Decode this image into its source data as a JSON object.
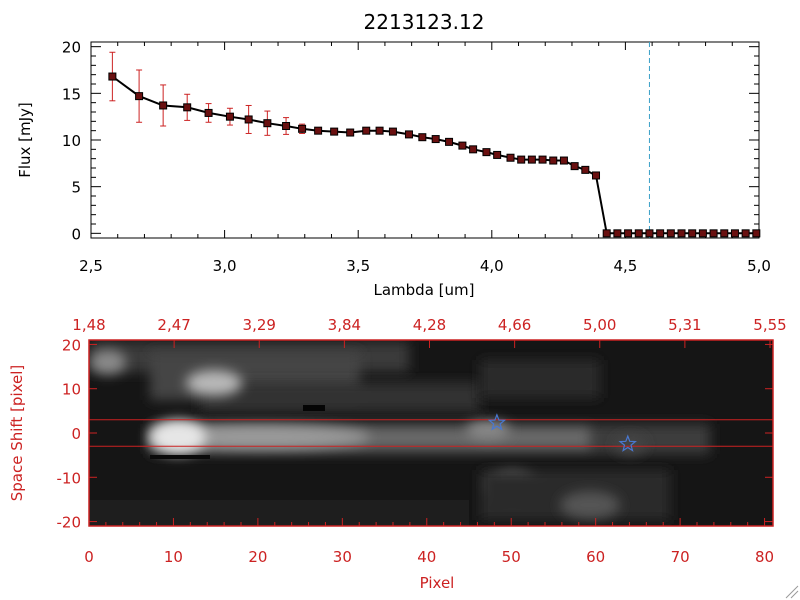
{
  "chart_data": [
    {
      "type": "line",
      "title": "2213123.12",
      "xlabel": "Lambda [um]",
      "ylabel": "Flux [mJy]",
      "xlim": [
        2.5,
        5.0
      ],
      "ylim": [
        -0.5,
        20.5
      ],
      "xticks": [
        "2.5",
        "3.0",
        "3.5",
        "4.0",
        "4.5",
        "5.0"
      ],
      "yticks": [
        "0",
        "5",
        "10",
        "15",
        "20"
      ],
      "marker_vline_x": 4.59,
      "series": [
        {
          "x": [
            2.58,
            2.68,
            2.77,
            2.86,
            2.94,
            3.02,
            3.09,
            3.16,
            3.23,
            3.29,
            3.35,
            3.41,
            3.47,
            3.53,
            3.58,
            3.63,
            3.69,
            3.74,
            3.79,
            3.84,
            3.89,
            3.93,
            3.98,
            4.02,
            4.07,
            4.11,
            4.15,
            4.19,
            4.23,
            4.27,
            4.31,
            4.35,
            4.39,
            4.43,
            4.47,
            4.51,
            4.55,
            4.59,
            4.63,
            4.67,
            4.71,
            4.75,
            4.79,
            4.83,
            4.87,
            4.91,
            4.95,
            4.99
          ],
          "y": [
            16.8,
            14.7,
            13.7,
            13.5,
            12.9,
            12.5,
            12.2,
            11.8,
            11.5,
            11.2,
            11.0,
            10.9,
            10.8,
            11.0,
            11.0,
            10.9,
            10.6,
            10.3,
            10.1,
            9.8,
            9.4,
            9.0,
            8.7,
            8.4,
            8.1,
            7.9,
            7.9,
            7.9,
            7.8,
            7.8,
            7.2,
            6.8,
            6.2,
            0.0,
            0.0,
            0.0,
            0.0,
            0.0,
            0.0,
            0.0,
            0.0,
            0.0,
            0.0,
            0.0,
            0.0,
            0.0,
            0.0,
            0.0
          ],
          "yerr": [
            2.6,
            2.8,
            2.2,
            1.4,
            1.0,
            0.9,
            1.5,
            1.3,
            0.9,
            0.5,
            0.3,
            0.3,
            0.3,
            0.3,
            0.3,
            0.3,
            0.3,
            0.3,
            0.3,
            0.3,
            0.3,
            0.3,
            0.3,
            0.3,
            0.3,
            0.3,
            0.3,
            0.3,
            0.3,
            0.3,
            0.3,
            0.3,
            0.3,
            0,
            0,
            0,
            0,
            0,
            0,
            0,
            0,
            0,
            0,
            0,
            0,
            0,
            0,
            0
          ]
        }
      ]
    },
    {
      "type": "heatmap",
      "xlabel": "Pixel",
      "ylabel": "Space Shift [pixel]",
      "xlim": [
        0,
        81
      ],
      "ylim": [
        -21,
        21
      ],
      "xticks": [
        "0",
        "10",
        "20",
        "30",
        "40",
        "50",
        "60",
        "70",
        "80"
      ],
      "yticks": [
        "-20",
        "-10",
        "0",
        "10",
        "20"
      ],
      "top_axis_ticks": [
        "1.48",
        "2.47",
        "3.29",
        "3.84",
        "4.28",
        "4.66",
        "5.00",
        "5.31",
        "5.55"
      ],
      "extraction_band": [
        -3,
        3
      ],
      "star_markers": [
        {
          "x": 48.3,
          "y": 2.3
        },
        {
          "x": 63.8,
          "y": -2.5
        }
      ],
      "colors": {
        "axis": "#cc2222",
        "star": "#4a78d0"
      }
    }
  ]
}
